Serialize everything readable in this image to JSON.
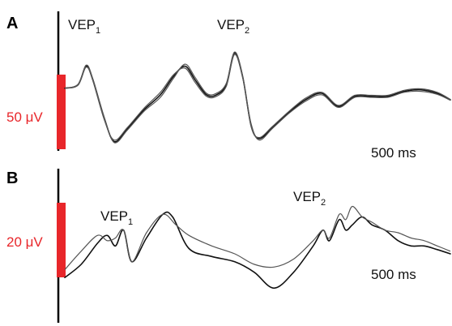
{
  "chart_data": [
    {
      "type": "line",
      "panel": "A",
      "annotations": [
        {
          "text": "VEP",
          "subscript": "1"
        },
        {
          "text": "VEP",
          "subscript": "2"
        }
      ],
      "scale_bar_amplitude": "50 μV",
      "time_label": "500 ms",
      "scale_color": "#e8262a",
      "series": [
        {
          "values": [
            [
              0,
              0.18
            ],
            [
              0.04,
              0.25
            ],
            [
              0.065,
              0.62
            ],
            [
              0.085,
              0.35
            ],
            [
              0.12,
              -0.42
            ],
            [
              0.15,
              -0.88
            ],
            [
              0.19,
              -0.62
            ],
            [
              0.24,
              -0.25
            ],
            [
              0.29,
              0.05
            ],
            [
              0.33,
              0.42
            ],
            [
              0.365,
              0.62
            ],
            [
              0.395,
              0.35
            ],
            [
              0.43,
              0.05
            ],
            [
              0.46,
              0.05
            ],
            [
              0.49,
              0.25
            ],
            [
              0.515,
              0.88
            ],
            [
              0.54,
              0.4
            ],
            [
              0.565,
              -0.55
            ],
            [
              0.59,
              -0.82
            ],
            [
              0.63,
              -0.6
            ],
            [
              0.68,
              -0.3
            ],
            [
              0.73,
              -0.05
            ],
            [
              0.78,
              0.08
            ],
            [
              0.83,
              -0.18
            ],
            [
              0.88,
              0.02
            ],
            [
              0.93,
              0.02
            ],
            [
              0.98,
              0.02
            ],
            [
              1.03,
              0.12
            ],
            [
              1.08,
              0.15
            ],
            [
              1.13,
              0.08
            ],
            [
              1.17,
              -0.05
            ]
          ]
        },
        {
          "values": [
            [
              0,
              0.18
            ],
            [
              0.04,
              0.24
            ],
            [
              0.065,
              0.6
            ],
            [
              0.085,
              0.33
            ],
            [
              0.12,
              -0.45
            ],
            [
              0.15,
              -0.85
            ],
            [
              0.19,
              -0.6
            ],
            [
              0.24,
              -0.22
            ],
            [
              0.29,
              0.1
            ],
            [
              0.33,
              0.45
            ],
            [
              0.365,
              0.58
            ],
            [
              0.395,
              0.3
            ],
            [
              0.43,
              0.02
            ],
            [
              0.46,
              0.02
            ],
            [
              0.49,
              0.22
            ],
            [
              0.515,
              0.85
            ],
            [
              0.54,
              0.38
            ],
            [
              0.565,
              -0.52
            ],
            [
              0.59,
              -0.85
            ],
            [
              0.63,
              -0.62
            ],
            [
              0.68,
              -0.32
            ],
            [
              0.73,
              -0.08
            ],
            [
              0.78,
              0.05
            ],
            [
              0.83,
              -0.2
            ],
            [
              0.88,
              0.0
            ],
            [
              0.93,
              0.0
            ],
            [
              0.98,
              0.0
            ],
            [
              1.03,
              0.1
            ],
            [
              1.08,
              0.12
            ],
            [
              1.13,
              0.06
            ],
            [
              1.17,
              -0.06
            ]
          ]
        },
        {
          "values": [
            [
              0,
              0.18
            ],
            [
              0.04,
              0.26
            ],
            [
              0.065,
              0.64
            ],
            [
              0.085,
              0.37
            ],
            [
              0.12,
              -0.4
            ],
            [
              0.15,
              -0.9
            ],
            [
              0.19,
              -0.65
            ],
            [
              0.24,
              -0.28
            ],
            [
              0.29,
              0.0
            ],
            [
              0.33,
              0.38
            ],
            [
              0.365,
              0.66
            ],
            [
              0.395,
              0.4
            ],
            [
              0.43,
              0.08
            ],
            [
              0.46,
              0.08
            ],
            [
              0.49,
              0.28
            ],
            [
              0.515,
              0.9
            ],
            [
              0.54,
              0.42
            ],
            [
              0.565,
              -0.58
            ],
            [
              0.59,
              -0.8
            ],
            [
              0.63,
              -0.58
            ],
            [
              0.68,
              -0.28
            ],
            [
              0.73,
              -0.02
            ],
            [
              0.78,
              0.1
            ],
            [
              0.83,
              -0.16
            ],
            [
              0.88,
              0.04
            ],
            [
              0.93,
              0.04
            ],
            [
              0.98,
              0.04
            ],
            [
              1.03,
              0.14
            ],
            [
              1.08,
              0.17
            ],
            [
              1.13,
              0.1
            ],
            [
              1.17,
              -0.04
            ]
          ]
        }
      ]
    },
    {
      "type": "line",
      "panel": "B",
      "annotations": [
        {
          "text": "VEP",
          "subscript": "1"
        },
        {
          "text": "VEP",
          "subscript": "2"
        }
      ],
      "scale_bar_amplitude": "20 μV",
      "time_label": "500 ms",
      "scale_color": "#e8262a",
      "series": [
        {
          "values": [
            [
              0,
              -0.65
            ],
            [
              0.05,
              -0.4
            ],
            [
              0.1,
              0.0
            ],
            [
              0.13,
              0.15
            ],
            [
              0.155,
              -0.05
            ],
            [
              0.18,
              0.25
            ],
            [
              0.205,
              -0.35
            ],
            [
              0.25,
              0.1
            ],
            [
              0.3,
              0.55
            ],
            [
              0.33,
              0.5
            ],
            [
              0.38,
              -0.1
            ],
            [
              0.45,
              -0.25
            ],
            [
              0.52,
              -0.35
            ],
            [
              0.58,
              -0.55
            ],
            [
              0.64,
              -0.85
            ],
            [
              0.7,
              -0.55
            ],
            [
              0.76,
              -0.05
            ],
            [
              0.79,
              0.25
            ],
            [
              0.81,
              0.05
            ],
            [
              0.84,
              0.45
            ],
            [
              0.86,
              0.25
            ],
            [
              0.88,
              0.35
            ],
            [
              0.91,
              0.5
            ],
            [
              0.94,
              0.35
            ],
            [
              0.98,
              0.25
            ],
            [
              1.02,
              0.05
            ],
            [
              1.06,
              -0.05
            ],
            [
              1.1,
              -0.05
            ],
            [
              1.14,
              -0.12
            ],
            [
              1.18,
              -0.2
            ]
          ]
        },
        {
          "values": [
            [
              0,
              -0.5
            ],
            [
              0.05,
              -0.15
            ],
            [
              0.1,
              0.15
            ],
            [
              0.13,
              0.05
            ],
            [
              0.155,
              0.1
            ],
            [
              0.18,
              0.25
            ],
            [
              0.205,
              -0.35
            ],
            [
              0.25,
              0.2
            ],
            [
              0.3,
              0.55
            ],
            [
              0.34,
              0.35
            ],
            [
              0.38,
              0.15
            ],
            [
              0.45,
              -0.05
            ],
            [
              0.52,
              -0.2
            ],
            [
              0.58,
              -0.4
            ],
            [
              0.64,
              -0.45
            ],
            [
              0.7,
              -0.3
            ],
            [
              0.76,
              0.05
            ],
            [
              0.79,
              0.25
            ],
            [
              0.81,
              0.1
            ],
            [
              0.84,
              0.55
            ],
            [
              0.86,
              0.45
            ],
            [
              0.88,
              0.7
            ],
            [
              0.91,
              0.5
            ],
            [
              0.94,
              0.4
            ],
            [
              0.98,
              0.25
            ],
            [
              1.02,
              0.2
            ],
            [
              1.06,
              0.1
            ],
            [
              1.1,
              0.05
            ],
            [
              1.14,
              -0.05
            ],
            [
              1.18,
              -0.15
            ]
          ]
        }
      ]
    }
  ]
}
